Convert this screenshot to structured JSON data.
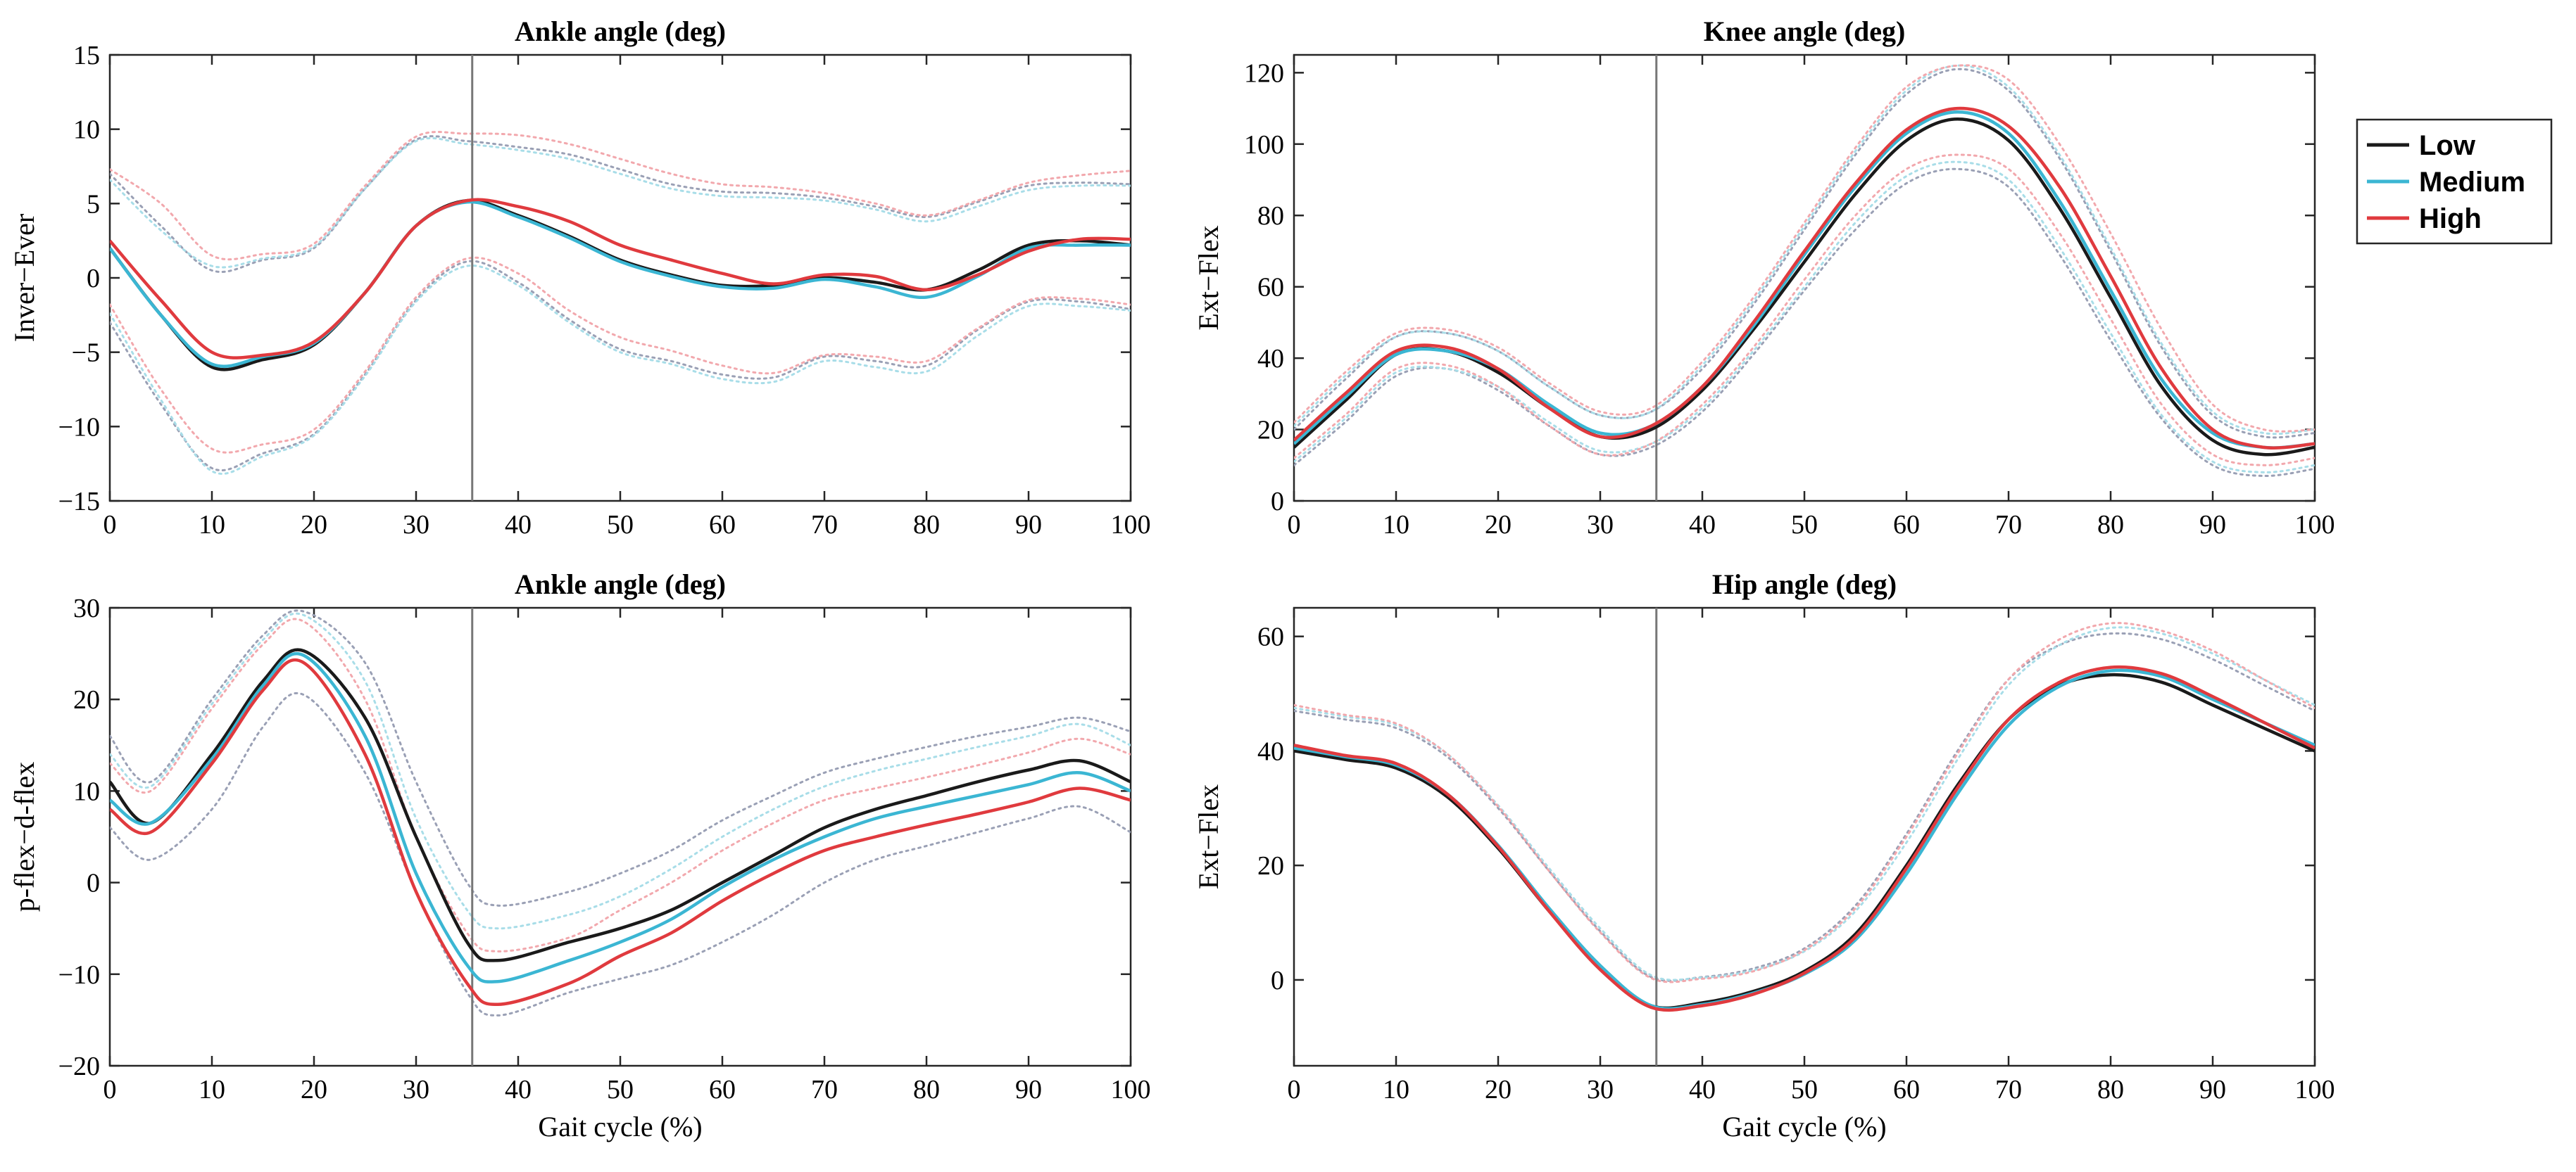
{
  "chart_data": [
    {
      "type": "line",
      "title": "Ankle angle (deg)",
      "xlabel": "",
      "ylabel": "Inver−Ever",
      "xlim": [
        0,
        100
      ],
      "ylim": [
        -15,
        15
      ],
      "xticks": [
        0,
        10,
        20,
        30,
        40,
        50,
        60,
        70,
        80,
        90,
        100
      ],
      "yticks": [
        -15,
        -10,
        -5,
        0,
        5,
        10,
        15
      ],
      "marker_x": 35.5,
      "x": [
        0,
        5,
        10,
        15,
        20,
        25,
        30,
        35,
        40,
        45,
        50,
        55,
        60,
        65,
        70,
        75,
        80,
        85,
        90,
        95,
        100
      ],
      "series": [
        {
          "name": "Low",
          "values": [
            2,
            -2.5,
            -6,
            -5.5,
            -4.5,
            -1,
            3.5,
            5.2,
            4.2,
            2.8,
            1.2,
            0.2,
            -0.5,
            -0.5,
            0,
            -0.3,
            -0.8,
            0.5,
            2.2,
            2.5,
            2.2
          ]
        },
        {
          "name": "Medium",
          "values": [
            2,
            -2.5,
            -5.8,
            -5.3,
            -4.4,
            -1,
            3.5,
            5.1,
            4.1,
            2.7,
            1.1,
            0.1,
            -0.6,
            -0.7,
            -0.1,
            -0.6,
            -1.3,
            0.1,
            2.0,
            2.2,
            2.2
          ]
        },
        {
          "name": "High",
          "values": [
            2.5,
            -1.5,
            -5,
            -5.2,
            -4.3,
            -1,
            3.5,
            5.2,
            4.8,
            3.8,
            2.2,
            1.2,
            0.3,
            -0.4,
            0.2,
            0.1,
            -0.8,
            0.2,
            1.8,
            2.6,
            2.6
          ]
        }
      ],
      "bands": [
        {
          "series": "Low",
          "upper": [
            7,
            3.5,
            0.5,
            1.2,
            2,
            6,
            9.3,
            9.2,
            8.8,
            8.3,
            7.3,
            6.3,
            5.8,
            5.7,
            5.4,
            4.8,
            4.1,
            5.1,
            6.2,
            6.4,
            6.3
          ],
          "lower": [
            -3,
            -8.5,
            -12.8,
            -11.8,
            -10.5,
            -6.5,
            -1.5,
            1.1,
            -0.3,
            -2.8,
            -4.8,
            -5.6,
            -6.5,
            -6.7,
            -5.3,
            -5.6,
            -5.9,
            -3.5,
            -1.6,
            -1.6,
            -2.1
          ]
        },
        {
          "series": "Medium",
          "upper": [
            6.6,
            3.2,
            0.8,
            1.3,
            2.1,
            6,
            9.2,
            9.0,
            8.6,
            8.0,
            7.0,
            6.0,
            5.5,
            5.4,
            5.2,
            4.6,
            3.8,
            4.8,
            5.9,
            6.2,
            6.2
          ],
          "lower": [
            -2.4,
            -8.2,
            -13,
            -12,
            -10.6,
            -6.6,
            -1.6,
            0.8,
            -0.5,
            -3.0,
            -5.0,
            -5.8,
            -6.8,
            -7.0,
            -5.6,
            -6.0,
            -6.3,
            -3.9,
            -1.9,
            -1.9,
            -2.2
          ]
        },
        {
          "series": "High",
          "upper": [
            7.3,
            5,
            1.5,
            1.6,
            2.3,
            6.2,
            9.5,
            9.7,
            9.6,
            9.0,
            8.0,
            7.0,
            6.3,
            6.1,
            5.7,
            5.0,
            4.2,
            5.2,
            6.4,
            6.9,
            7.2
          ],
          "lower": [
            -1.8,
            -7.5,
            -11.5,
            -11.2,
            -10.2,
            -6.3,
            -1.3,
            1.3,
            0.3,
            -2.2,
            -4.0,
            -4.9,
            -5.9,
            -6.4,
            -5.2,
            -5.3,
            -5.6,
            -3.4,
            -1.5,
            -1.4,
            -1.8
          ]
        }
      ]
    },
    {
      "type": "line",
      "title": "Knee angle (deg)",
      "xlabel": "",
      "ylabel": "Ext−Flex",
      "xlim": [
        0,
        100
      ],
      "ylim": [
        0,
        125
      ],
      "xticks": [
        0,
        10,
        20,
        30,
        40,
        50,
        60,
        70,
        80,
        90,
        100
      ],
      "yticks": [
        0,
        20,
        40,
        60,
        80,
        100,
        120
      ],
      "marker_x": 35.5,
      "x": [
        0,
        5,
        10,
        15,
        20,
        25,
        30,
        35,
        40,
        45,
        50,
        55,
        60,
        65,
        70,
        75,
        80,
        85,
        90,
        95,
        100
      ],
      "series": [
        {
          "name": "Low",
          "values": [
            15,
            28,
            41,
            42,
            36,
            26,
            18,
            20,
            31,
            48,
            67,
            86,
            101,
            107,
            101,
            82,
            57,
            32,
            17,
            13,
            15
          ]
        },
        {
          "name": "Medium",
          "values": [
            16,
            29,
            41,
            42,
            37,
            27,
            19,
            21,
            32,
            49,
            69,
            88,
            103,
            109,
            103,
            84,
            59,
            34,
            19,
            15,
            16
          ]
        },
        {
          "name": "High",
          "values": [
            17,
            30,
            42,
            43,
            37,
            26,
            18,
            21,
            32,
            50,
            70,
            89,
            104,
            110,
            105,
            88,
            63,
            37,
            20,
            15,
            16
          ]
        }
      ],
      "bands": [
        {
          "series": "Low",
          "upper": [
            20,
            34,
            46,
            47,
            42,
            32,
            24,
            25,
            37,
            55,
            76,
            97,
            114,
            121,
            115,
            96,
            70,
            43,
            24,
            18,
            19
          ],
          "lower": [
            10,
            22,
            35,
            37,
            31,
            21,
            13,
            15,
            25,
            41,
            59,
            76,
            89,
            93,
            88,
            69,
            45,
            23,
            10,
            7,
            9
          ]
        },
        {
          "series": "Medium",
          "upper": [
            21,
            35,
            46,
            47,
            42,
            32,
            24,
            25,
            38,
            56,
            77,
            98,
            115,
            122,
            116,
            97,
            71,
            44,
            25,
            19,
            20
          ],
          "lower": [
            11,
            23,
            36,
            37,
            32,
            22,
            14,
            16,
            26,
            42,
            60,
            78,
            91,
            95,
            90,
            71,
            47,
            24,
            11,
            8,
            10
          ]
        },
        {
          "series": "High",
          "upper": [
            22,
            36,
            47,
            48,
            43,
            33,
            25,
            26,
            39,
            57,
            78,
            99,
            116,
            122,
            118,
            100,
            75,
            48,
            27,
            20,
            20
          ],
          "lower": [
            12,
            24,
            37,
            38,
            32,
            21,
            13,
            16,
            27,
            43,
            62,
            80,
            93,
            97,
            93,
            75,
            51,
            27,
            13,
            10,
            12
          ]
        }
      ]
    },
    {
      "type": "line",
      "title": "Ankle angle (deg)",
      "xlabel": "Gait cycle (%)",
      "ylabel": "p-flex−d-flex",
      "xlim": [
        0,
        100
      ],
      "ylim": [
        -20,
        30
      ],
      "xticks": [
        0,
        10,
        20,
        30,
        40,
        50,
        60,
        70,
        80,
        90,
        100
      ],
      "yticks": [
        -20,
        -10,
        0,
        10,
        20,
        30
      ],
      "marker_x": 35.5,
      "x": [
        0,
        4,
        10,
        15,
        19,
        25,
        30,
        35,
        38,
        45,
        50,
        55,
        60,
        65,
        70,
        75,
        80,
        85,
        90,
        95,
        100
      ],
      "series": [
        {
          "name": "Low",
          "values": [
            11,
            6.5,
            14,
            22,
            25.3,
            18,
            5,
            -6.5,
            -8.5,
            -6.5,
            -5,
            -3,
            0,
            3,
            6,
            8,
            9.5,
            11,
            12.3,
            13.3,
            11
          ]
        },
        {
          "name": "Medium",
          "values": [
            9,
            6.5,
            13.5,
            21.5,
            24.8,
            16,
            1,
            -9,
            -10.8,
            -8.5,
            -6.5,
            -4,
            -0.5,
            2.5,
            5,
            7,
            8.3,
            9.5,
            10.7,
            12,
            10
          ]
        },
        {
          "name": "High",
          "values": [
            8,
            5.5,
            13,
            21,
            24,
            14,
            -1,
            -11,
            -13.3,
            -11,
            -8,
            -5.5,
            -2,
            1,
            3.5,
            5,
            6.3,
            7.5,
            8.8,
            10.3,
            9
          ]
        }
      ],
      "bands": [
        {
          "series": "Low",
          "upper": [
            16,
            11,
            20,
            27,
            29.6,
            24,
            11,
            0,
            -2.5,
            -1,
            1,
            3.5,
            6.8,
            9.5,
            12,
            13.5,
            14.8,
            16,
            17,
            18,
            16.5
          ],
          "lower": [
            6,
            2.5,
            8,
            17,
            20.5,
            12,
            -1,
            -12,
            -14.5,
            -12,
            -10.5,
            -9,
            -6.5,
            -3.5,
            0,
            2.5,
            4,
            5.5,
            7,
            8.3,
            5.5
          ]
        },
        {
          "series": "Medium",
          "upper": [
            14,
            10.5,
            19.5,
            26.5,
            29.2,
            22,
            7,
            -3,
            -5,
            -3.5,
            -1.5,
            1.5,
            5,
            8,
            10.5,
            12.2,
            13.5,
            14.8,
            16,
            17.3,
            15
          ]
        },
        {
          "series": "High",
          "upper": [
            13,
            10,
            19,
            26,
            28.5,
            20,
            5,
            -5.5,
            -7.5,
            -6,
            -3,
            0,
            3.5,
            6.5,
            9,
            10.3,
            11.5,
            12.8,
            14.2,
            15.7,
            14
          ]
        }
      ]
    },
    {
      "type": "line",
      "title": "Hip angle (deg)",
      "xlabel": "Gait cycle (%)",
      "ylabel": "Ext−Flex",
      "xlim": [
        0,
        100
      ],
      "ylim": [
        -15,
        65
      ],
      "xticks": [
        0,
        10,
        20,
        30,
        40,
        50,
        60,
        70,
        80,
        90,
        100
      ],
      "yticks": [
        0,
        20,
        40,
        60
      ],
      "marker_x": 35.5,
      "x": [
        0,
        5,
        10,
        15,
        20,
        25,
        30,
        35,
        40,
        45,
        50,
        55,
        60,
        65,
        70,
        75,
        80,
        85,
        90,
        95,
        100
      ],
      "series": [
        {
          "name": "Low",
          "values": [
            40,
            38.5,
            37,
            32,
            23,
            12,
            2,
            -4.5,
            -4,
            -2,
            1.5,
            8,
            20,
            34,
            45.5,
            51.5,
            53.3,
            52,
            48,
            44,
            40
          ]
        },
        {
          "name": "Medium",
          "values": [
            40.5,
            39,
            37.5,
            32.5,
            23.5,
            12.5,
            2.5,
            -4.5,
            -4.3,
            -2.3,
            1,
            7,
            18.5,
            32.5,
            44.5,
            51.3,
            54,
            53,
            49,
            45,
            41
          ]
        },
        {
          "name": "High",
          "values": [
            41,
            39.2,
            37.8,
            32.5,
            23.3,
            12,
            1.8,
            -4.8,
            -4.5,
            -2.5,
            1.2,
            7.5,
            19.5,
            33.5,
            45.5,
            52,
            54.6,
            53.5,
            49.5,
            45,
            40.5
          ]
        }
      ],
      "bands": [
        {
          "series": "Low",
          "upper": [
            47,
            45.5,
            44,
            39,
            30,
            19,
            8.5,
            0.5,
            0.5,
            2,
            5.5,
            13,
            25.5,
            40,
            52.5,
            58.5,
            60.5,
            59.5,
            56,
            51.5,
            47
          ]
        },
        {
          "series": "Medium",
          "upper": [
            47.5,
            46,
            44.5,
            39.5,
            30.5,
            19.5,
            9,
            0.8,
            0.4,
            1.7,
            5,
            12,
            24,
            38.5,
            51.5,
            58.5,
            61.5,
            60.5,
            57,
            52.5,
            48
          ]
        },
        {
          "series": "High",
          "upper": [
            48,
            46.3,
            44.8,
            39.5,
            30.3,
            19,
            8.3,
            0.3,
            0.2,
            1.5,
            5.2,
            12.5,
            25,
            39.5,
            52.5,
            59.5,
            62.3,
            61,
            57.5,
            52.5,
            47.5
          ]
        }
      ]
    }
  ],
  "legend": {
    "entries": [
      {
        "label": "Low",
        "color": "#1a1a1a"
      },
      {
        "label": "Medium",
        "color": "#3bb6d3"
      },
      {
        "label": "High",
        "color": "#e03a3e"
      }
    ]
  },
  "colors": {
    "Low": "#1a1a1a",
    "Medium": "#3bb6d3",
    "High": "#e03a3e",
    "Low_band": "#9aa0b5",
    "Medium_band": "#a8dde8",
    "High_band": "#f2a8ad",
    "marker_line": "#777777"
  }
}
